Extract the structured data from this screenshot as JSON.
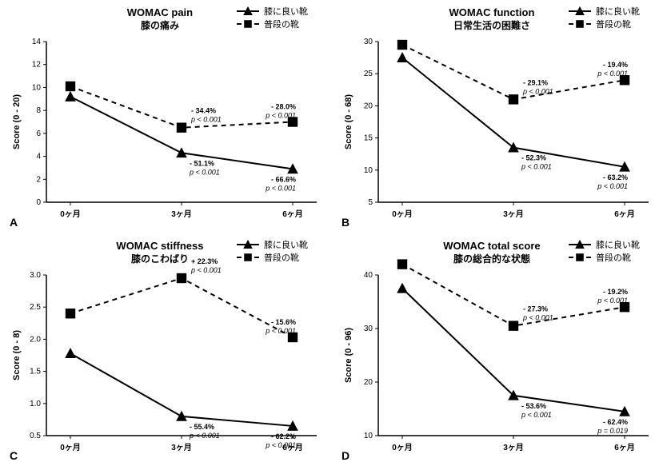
{
  "global": {
    "background_color": "#ffffff",
    "axis_color": "#000000",
    "text_color": "#000000",
    "font_family": "Arial",
    "x_labels": [
      "0ヶ月",
      "3ヶ月",
      "6ヶ月"
    ],
    "legend": {
      "series1": {
        "label": "膝に良い靴",
        "marker": "triangle",
        "dash": "solid"
      },
      "series2": {
        "label": "普段の靴",
        "marker": "square",
        "dash": "dashed"
      }
    },
    "line_color": "#000000",
    "line_width_solid": 2,
    "line_width_dashed": 2,
    "dash_pattern": "6,5",
    "marker_size": 6,
    "title_fontsize": 13,
    "subtitle_fontsize": 12,
    "axis_label_fontsize": 11,
    "tick_fontsize": 10,
    "annot_fontsize": 9
  },
  "panels": [
    {
      "id": "A",
      "title": "WOMAC pain",
      "subtitle": "膝の痛み",
      "y_axis_label": "Score (0 - 20)",
      "ylim": [
        0,
        14
      ],
      "ytick_step": 2,
      "series1_values": [
        9.2,
        4.3,
        2.9
      ],
      "series2_values": [
        10.1,
        6.5,
        7.0
      ],
      "annotations": [
        {
          "x": 1,
          "above": true,
          "pct": "- 34.4%",
          "p": "p < 0.001"
        },
        {
          "x": 1,
          "above": false,
          "pct": "- 51.1%",
          "p": "p < 0.001"
        },
        {
          "x": 2,
          "above": true,
          "pct": "- 28.0%",
          "p": "p < 0.001"
        },
        {
          "x": 2,
          "above": false,
          "pct": "- 66.6%",
          "p": "p < 0.001"
        }
      ]
    },
    {
      "id": "B",
      "title": "WOMAC function",
      "subtitle": "日常生活の困難さ",
      "y_axis_label": "Score (0 - 68)",
      "ylim": [
        5,
        30
      ],
      "ytick_step": 5,
      "series1_values": [
        27.5,
        13.5,
        10.5
      ],
      "series2_values": [
        29.5,
        21.0,
        24.0
      ],
      "annotations": [
        {
          "x": 1,
          "above": true,
          "pct": "- 29.1%",
          "p": "p < 0.001"
        },
        {
          "x": 1,
          "above": false,
          "pct": "- 52.3%",
          "p": "p < 0.001"
        },
        {
          "x": 2,
          "above": true,
          "pct": "- 19.4%",
          "p": "p < 0.001"
        },
        {
          "x": 2,
          "above": false,
          "pct": "- 63.2%",
          "p": "p < 0.001"
        }
      ]
    },
    {
      "id": "C",
      "title": "WOMAC stiffness",
      "subtitle": "膝のこわばり",
      "y_axis_label": "Score (0 - 8)",
      "ylim": [
        0.5,
        3.0
      ],
      "ytick_step": 0.5,
      "series1_values": [
        1.78,
        0.8,
        0.65
      ],
      "series2_values": [
        2.4,
        2.95,
        2.03
      ],
      "annotations": [
        {
          "x": 1,
          "above": true,
          "pct": "+ 22.3%",
          "p": "p < 0.001"
        },
        {
          "x": 1,
          "above": false,
          "pct": "- 55.4%",
          "p": "p < 0.001"
        },
        {
          "x": 2,
          "above": true,
          "pct": "- 15.6%",
          "p": "p < 0.001"
        },
        {
          "x": 2,
          "above": false,
          "pct": "- 62.2%",
          "p": "p < 0.001"
        }
      ]
    },
    {
      "id": "D",
      "title": "WOMAC total score",
      "subtitle": "膝の総合的な状態",
      "y_axis_label": "Score (0 - 96)",
      "ylim": [
        10,
        40
      ],
      "ytick_step": 10,
      "series1_values": [
        37.5,
        17.5,
        14.5
      ],
      "series2_values": [
        42.0,
        30.5,
        34.0
      ],
      "annotations": [
        {
          "x": 1,
          "above": true,
          "pct": "- 27.3%",
          "p": "p < 0.001"
        },
        {
          "x": 1,
          "above": false,
          "pct": "- 53.6%",
          "p": "p < 0.001"
        },
        {
          "x": 2,
          "above": true,
          "pct": "- 19.2%",
          "p": "p < 0.001"
        },
        {
          "x": 2,
          "above": false,
          "pct": "- 62.4%",
          "p": "p = 0.019"
        }
      ]
    }
  ]
}
